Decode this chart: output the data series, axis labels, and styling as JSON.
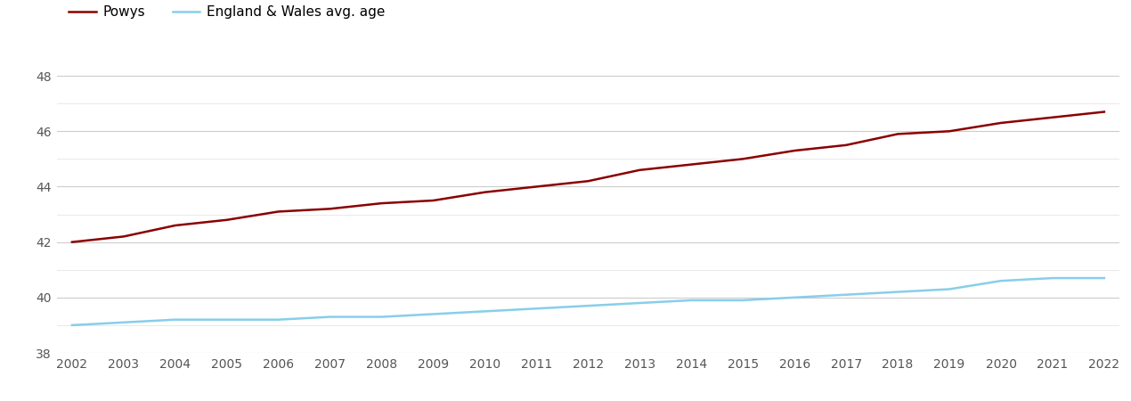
{
  "years": [
    2002,
    2003,
    2004,
    2005,
    2006,
    2007,
    2008,
    2009,
    2010,
    2011,
    2012,
    2013,
    2014,
    2015,
    2016,
    2017,
    2018,
    2019,
    2020,
    2021,
    2022
  ],
  "powys": [
    42.0,
    42.2,
    42.6,
    42.8,
    43.1,
    43.2,
    43.4,
    43.5,
    43.8,
    44.0,
    44.2,
    44.6,
    44.8,
    45.0,
    45.3,
    45.5,
    45.9,
    46.0,
    46.3,
    46.5,
    46.7
  ],
  "england_wales": [
    39.0,
    39.1,
    39.2,
    39.2,
    39.2,
    39.3,
    39.3,
    39.4,
    39.5,
    39.6,
    39.7,
    39.8,
    39.9,
    39.9,
    40.0,
    40.1,
    40.2,
    40.3,
    40.6,
    40.7,
    40.7
  ],
  "powys_color": "#8B0000",
  "england_wales_color": "#87CEEB",
  "powys_label": "Powys",
  "england_wales_label": "England & Wales avg. age",
  "ylim": [
    38,
    49
  ],
  "yticks_major": [
    38,
    40,
    42,
    44,
    46,
    48
  ],
  "yticks_minor": [
    39,
    41,
    43,
    45,
    47
  ],
  "xlim": [
    2002,
    2022
  ],
  "background_color": "#ffffff",
  "grid_color_major": "#cccccc",
  "grid_color_minor": "#e5e5e5",
  "line_width": 1.8,
  "legend_fontsize": 11,
  "tick_fontsize": 10
}
